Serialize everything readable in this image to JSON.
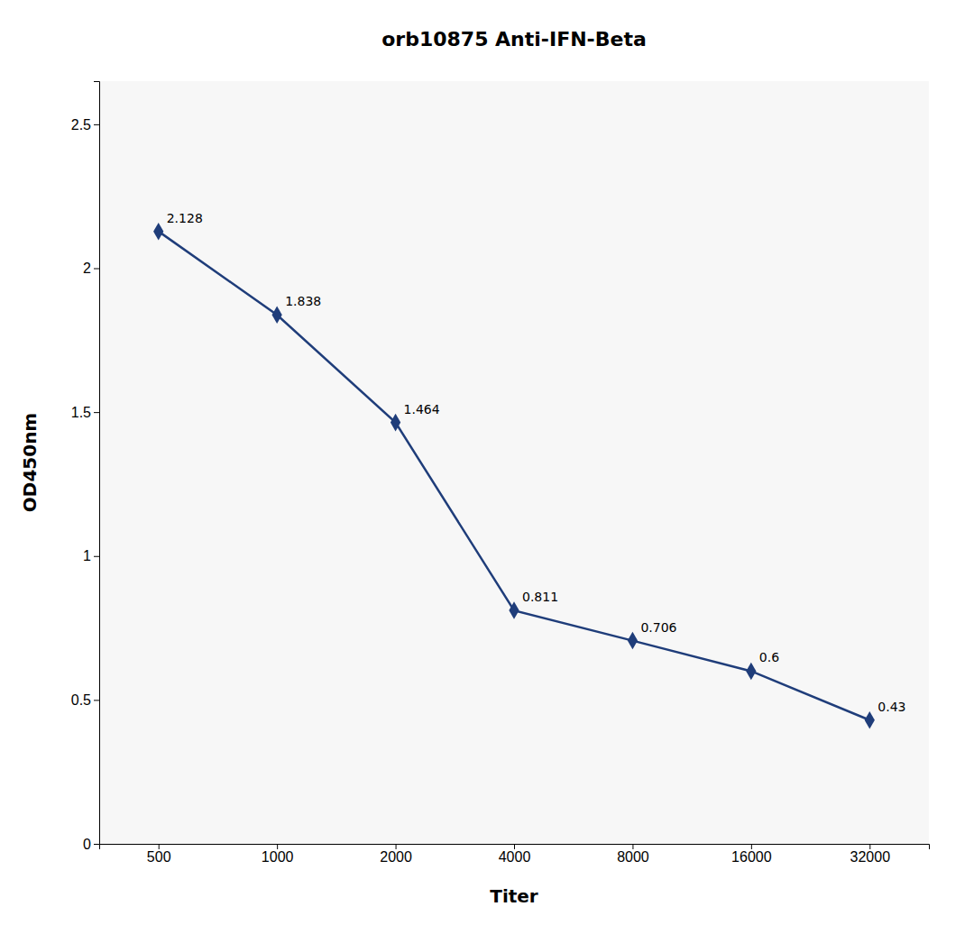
{
  "chart_data": {
    "type": "line",
    "title": "orb10875 Anti-IFN-Beta",
    "xlabel": "Titer",
    "ylabel": "OD450nm",
    "categories": [
      "500",
      "1000",
      "2000",
      "4000",
      "8000",
      "16000",
      "32000"
    ],
    "values": [
      2.128,
      1.838,
      1.464,
      0.811,
      0.706,
      0.6,
      0.43
    ],
    "color": "#1f3d7a",
    "marker": "diamond",
    "ylim": [
      0,
      2.65
    ],
    "yticks": [
      0,
      0.5,
      1,
      1.5,
      2,
      2.5
    ],
    "grid": false,
    "data_labels": true
  }
}
